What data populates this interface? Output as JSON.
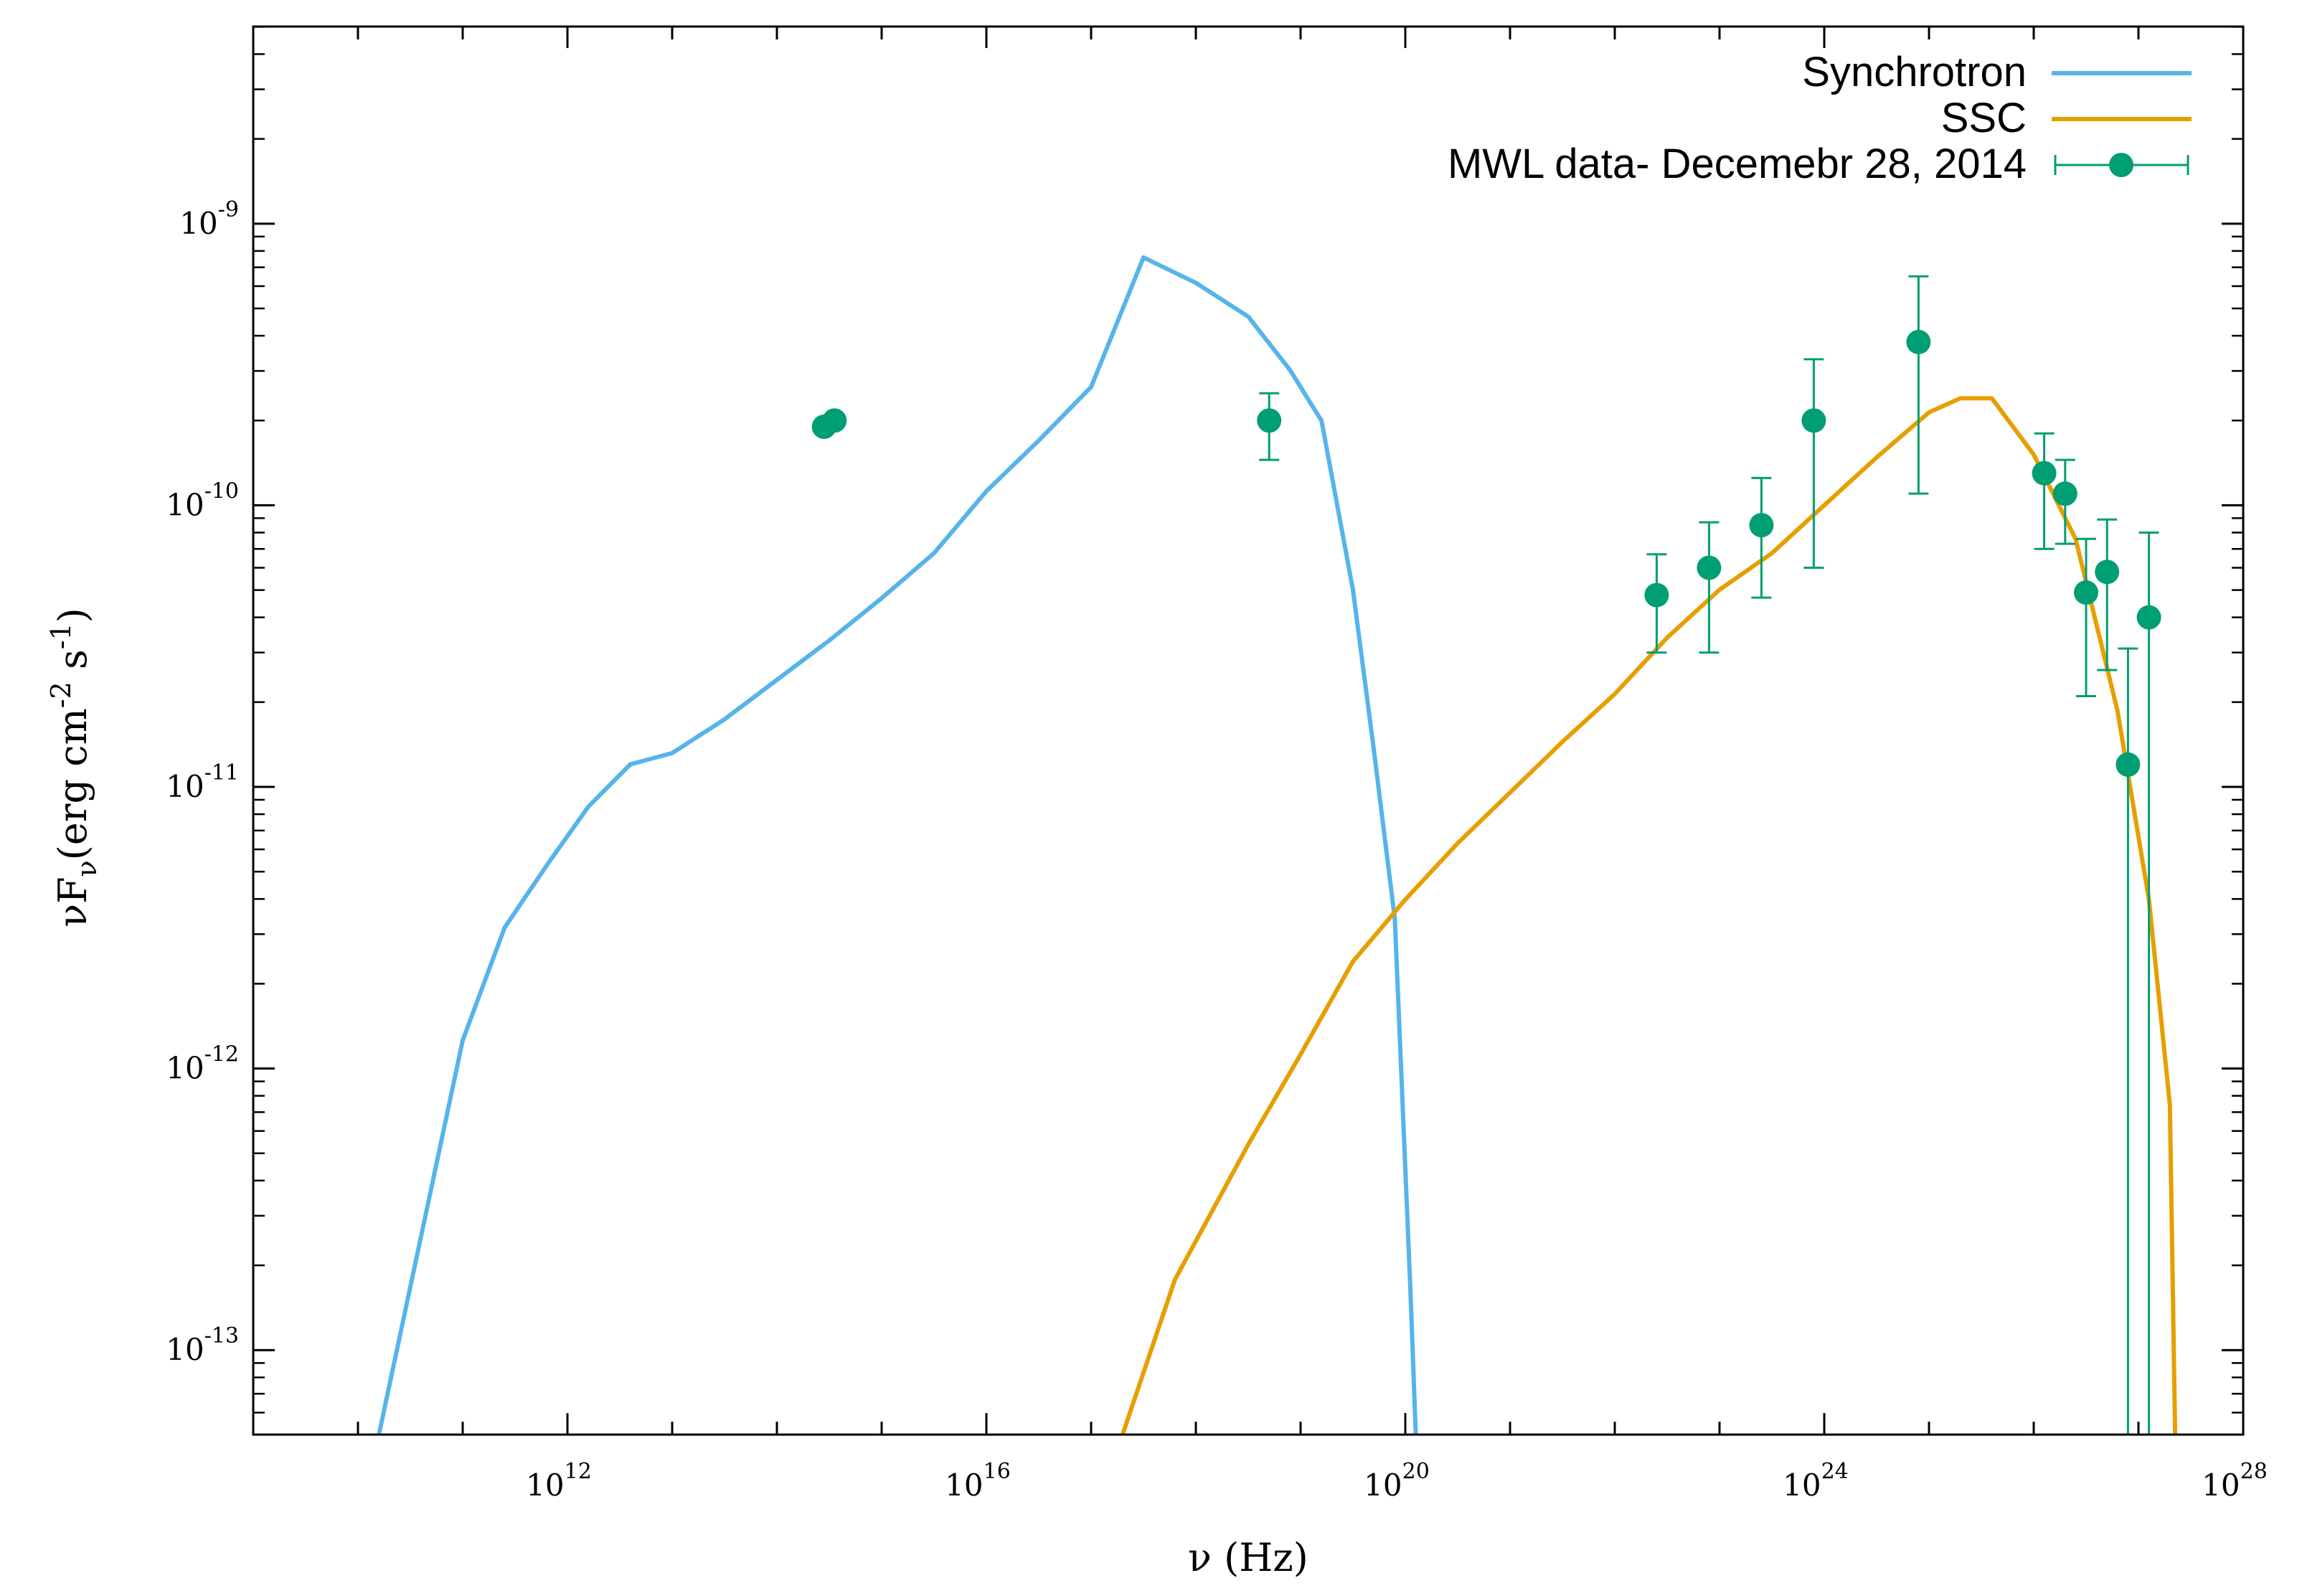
{
  "chart_data": {
    "type": "scatter",
    "title": "",
    "xlabel": "ν (Hz)",
    "ylabel": {
      "prefix": "νF",
      "sub": "ν",
      "units": "(erg cm",
      "exp1": "-2",
      "mid": " s",
      "exp2": "-1",
      "close": ")"
    },
    "xscale": "log",
    "yscale": "log",
    "xlim_log10": [
      9,
      28
    ],
    "ylim_log10": [
      -13.3,
      -8.3
    ],
    "x_ticks": [
      {
        "exp": 12,
        "base": "10",
        "sup": "12"
      },
      {
        "exp": 16,
        "base": "10",
        "sup": "16"
      },
      {
        "exp": 20,
        "base": "10",
        "sup": "20"
      },
      {
        "exp": 24,
        "base": "10",
        "sup": "24"
      },
      {
        "exp": 28,
        "base": "10",
        "sup": "28"
      }
    ],
    "y_ticks": [
      {
        "exp": -9,
        "base": "10",
        "sup": "-9"
      },
      {
        "exp": -10,
        "base": "10",
        "sup": "-10"
      },
      {
        "exp": -11,
        "base": "10",
        "sup": "-11"
      },
      {
        "exp": -12,
        "base": "10",
        "sup": "-12"
      },
      {
        "exp": -13,
        "base": "10",
        "sup": "-13"
      }
    ],
    "legend": {
      "position": "top-right",
      "entries": [
        {
          "label": "Synchrotron",
          "type": "line",
          "color": "#56b4e9"
        },
        {
          "label": "SSC",
          "type": "line",
          "color": "#e69f00"
        },
        {
          "label": "MWL data- Decemebr 28, 2014",
          "type": "points",
          "color": "#009e73"
        }
      ]
    },
    "series": [
      {
        "name": "Synchrotron",
        "kind": "line",
        "color": "#56b4e9",
        "x_log10": [
          10.2,
          10.6,
          11.0,
          11.4,
          11.8,
          12.2,
          12.6,
          13.0,
          13.5,
          14.0,
          14.5,
          15.0,
          15.5,
          16.0,
          16.5,
          17.0,
          17.5,
          18.0,
          18.5,
          18.9,
          19.2,
          19.5,
          19.7,
          19.9,
          20.05,
          20.1
        ],
        "y_log10": [
          -13.3,
          -12.6,
          -11.9,
          -11.5,
          -11.28,
          -11.07,
          -10.92,
          -10.88,
          -10.76,
          -10.62,
          -10.48,
          -10.33,
          -10.17,
          -9.95,
          -9.77,
          -9.58,
          -9.12,
          -9.21,
          -9.33,
          -9.52,
          -9.7,
          -10.3,
          -10.87,
          -11.47,
          -12.8,
          -13.3
        ]
      },
      {
        "name": "SSC",
        "kind": "line",
        "color": "#e69f00",
        "x_log10": [
          17.3,
          17.8,
          18.5,
          19.0,
          19.5,
          20.0,
          20.5,
          21.0,
          21.5,
          22.0,
          22.5,
          23.0,
          23.5,
          24.0,
          24.5,
          25.0,
          25.3,
          25.6,
          26.0,
          26.4,
          26.8,
          27.1,
          27.3,
          27.35
        ],
        "y_log10": [
          -13.3,
          -12.75,
          -12.27,
          -11.95,
          -11.62,
          -11.4,
          -11.2,
          -11.02,
          -10.84,
          -10.67,
          -10.47,
          -10.3,
          -10.17,
          -10.0,
          -9.83,
          -9.67,
          -9.62,
          -9.62,
          -9.82,
          -10.12,
          -10.73,
          -11.4,
          -12.13,
          -13.3
        ]
      },
      {
        "name": "MWL data- Decemebr 28, 2014",
        "kind": "points",
        "color": "#009e73",
        "points": [
          {
            "x_log10": 14.45,
            "y": 1.9e-10,
            "ylo": 1.9e-10,
            "yhi": 1.9e-10
          },
          {
            "x_log10": 14.55,
            "y": 2e-10,
            "ylo": 2e-10,
            "yhi": 2e-10
          },
          {
            "x_log10": 18.7,
            "y": 2e-10,
            "ylo": 1.45e-10,
            "yhi": 2.5e-10
          },
          {
            "x_log10": 22.4,
            "y": 4.8e-11,
            "ylo": 3e-11,
            "yhi": 6.7e-11
          },
          {
            "x_log10": 22.9,
            "y": 6e-11,
            "ylo": 3e-11,
            "yhi": 8.7e-11
          },
          {
            "x_log10": 23.4,
            "y": 8.5e-11,
            "ylo": 4.7e-11,
            "yhi": 1.25e-10
          },
          {
            "x_log10": 23.9,
            "y": 2e-10,
            "ylo": 6e-11,
            "yhi": 3.3e-10
          },
          {
            "x_log10": 24.9,
            "y": 3.8e-10,
            "ylo": 1.1e-10,
            "yhi": 6.5e-10
          },
          {
            "x_log10": 26.1,
            "y": 1.3e-10,
            "ylo": 7e-11,
            "yhi": 1.8e-10
          },
          {
            "x_log10": 26.3,
            "y": 1.1e-10,
            "ylo": 7.3e-11,
            "yhi": 1.45e-10
          },
          {
            "x_log10": 26.5,
            "y": 4.9e-11,
            "ylo": 2.1e-11,
            "yhi": 7.6e-11
          },
          {
            "x_log10": 26.7,
            "y": 5.8e-11,
            "ylo": 2.6e-11,
            "yhi": 8.9e-11
          },
          {
            "x_log10": 26.9,
            "y": 1.2e-11,
            "ylo": 5e-14,
            "yhi": 3.1e-11
          },
          {
            "x_log10": 27.1,
            "y": 4e-11,
            "ylo": 5e-14,
            "yhi": 8e-11
          }
        ]
      }
    ]
  }
}
